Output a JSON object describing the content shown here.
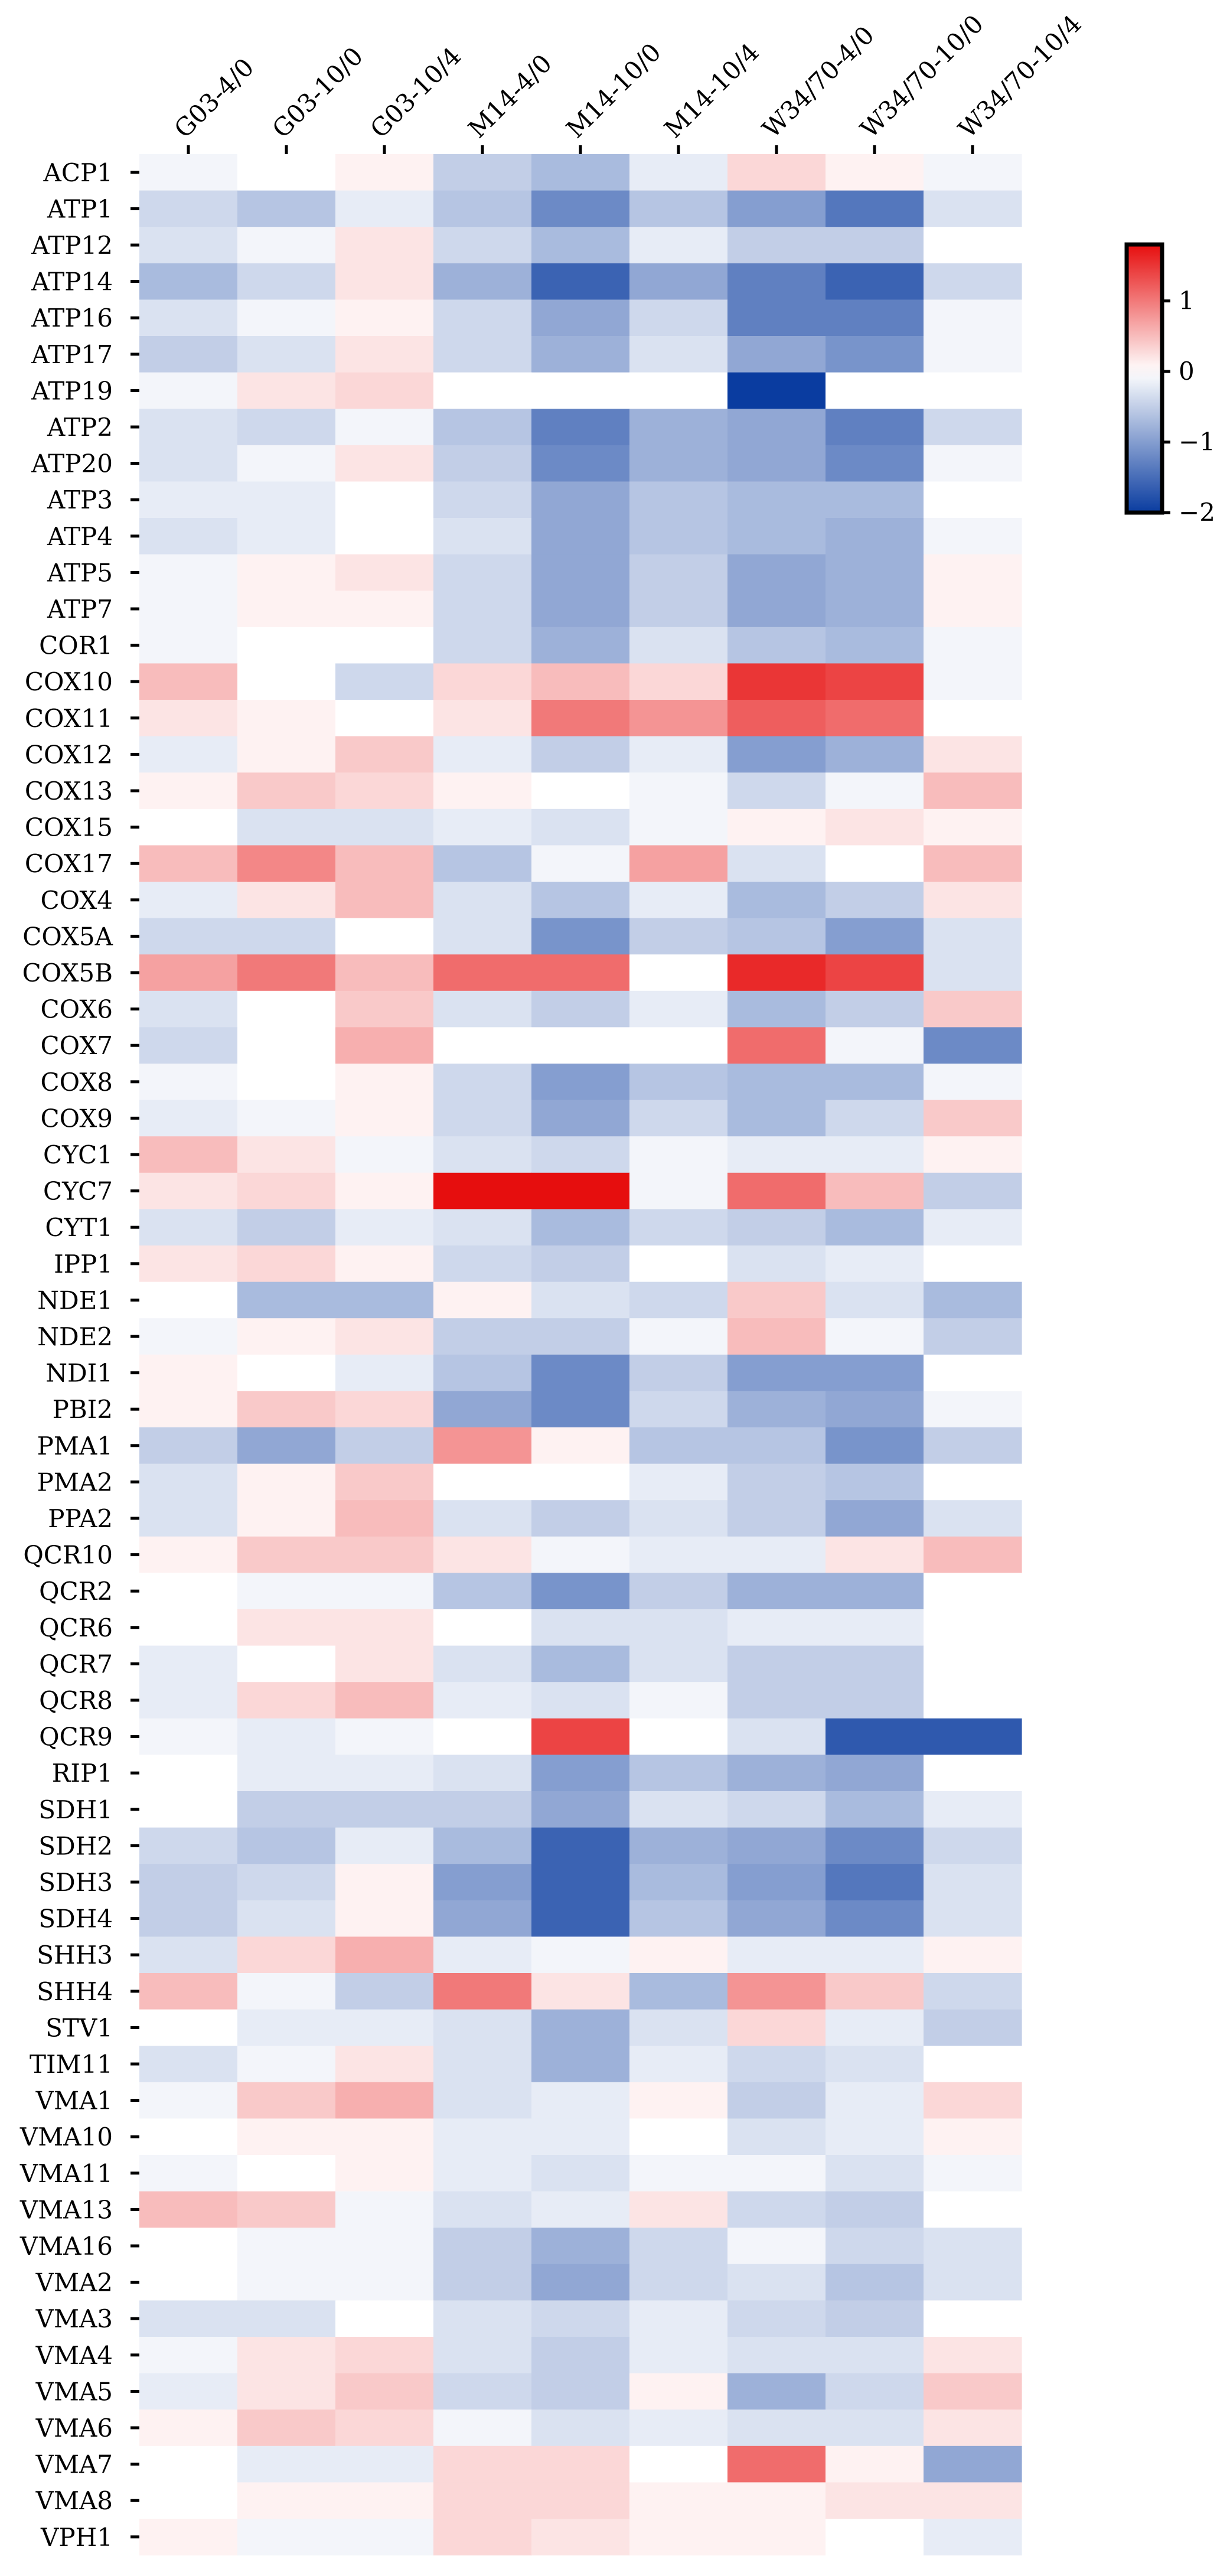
{
  "chart_data": {
    "type": "heatmap",
    "title": "",
    "xlabel": "",
    "ylabel": "",
    "columns": [
      "G03-4/0",
      "G03-10/0",
      "G03-10/4",
      "M14-4/0",
      "M14-10/0",
      "M14-10/4",
      "W34/70-4/0",
      "W34/70-10/0",
      "W34/70-10/4"
    ],
    "rows": [
      "ACP1",
      "ATP1",
      "ATP12",
      "ATP14",
      "ATP16",
      "ATP17",
      "ATP19",
      "ATP2",
      "ATP20",
      "ATP3",
      "ATP4",
      "ATP5",
      "ATP7",
      "COR1",
      "COX10",
      "COX11",
      "COX12",
      "COX13",
      "COX15",
      "COX17",
      "COX4",
      "COX5A",
      "COX5B",
      "COX6",
      "COX7",
      "COX8",
      "COX9",
      "CYC1",
      "CYC7",
      "CYT1",
      "IPP1",
      "NDE1",
      "NDE2",
      "NDI1",
      "PBI2",
      "PMA1",
      "PMA2",
      "PPA2",
      "QCR10",
      "QCR2",
      "QCR6",
      "QCR7",
      "QCR8",
      "QCR9",
      "RIP1",
      "SDH1",
      "SDH2",
      "SDH3",
      "SDH4",
      "SHH3",
      "SHH4",
      "STV1",
      "TIM11",
      "VMA1",
      "VMA10",
      "VMA11",
      "VMA13",
      "VMA16",
      "VMA2",
      "VMA3",
      "VMA4",
      "VMA5",
      "VMA6",
      "VMA7",
      "VMA8",
      "VPH1"
    ],
    "values": [
      [
        -0.1,
        0,
        0.1,
        -0.5,
        -0.7,
        -0.2,
        0.3,
        0.1,
        -0.1
      ],
      [
        -0.4,
        -0.6,
        -0.2,
        -0.6,
        -1.2,
        -0.6,
        -1.0,
        -1.4,
        -0.3
      ],
      [
        -0.3,
        -0.1,
        0.2,
        -0.4,
        -0.7,
        -0.2,
        -0.5,
        -0.5,
        0
      ],
      [
        -0.7,
        -0.4,
        0.2,
        -0.8,
        -1.6,
        -0.9,
        -1.3,
        -1.6,
        -0.4
      ],
      [
        -0.3,
        -0.1,
        0.1,
        -0.4,
        -0.9,
        -0.4,
        -1.3,
        -1.3,
        -0.1
      ],
      [
        -0.5,
        -0.3,
        0.2,
        -0.4,
        -0.8,
        -0.3,
        -0.9,
        -1.1,
        -0.1
      ],
      [
        -0.1,
        0.2,
        0.3,
        0,
        0,
        0,
        -2.0,
        0,
        0
      ],
      [
        -0.3,
        -0.4,
        -0.1,
        -0.6,
        -1.3,
        -0.8,
        -0.9,
        -1.3,
        -0.4
      ],
      [
        -0.3,
        -0.1,
        0.2,
        -0.5,
        -1.2,
        -0.8,
        -0.9,
        -1.2,
        -0.1
      ],
      [
        -0.2,
        -0.2,
        0,
        -0.4,
        -0.9,
        -0.6,
        -0.7,
        -0.7,
        0
      ],
      [
        -0.3,
        -0.2,
        0,
        -0.3,
        -0.9,
        -0.6,
        -0.7,
        -0.8,
        -0.1
      ],
      [
        -0.1,
        0.1,
        0.2,
        -0.4,
        -0.9,
        -0.5,
        -0.9,
        -0.8,
        0.1
      ],
      [
        -0.1,
        0.1,
        0.1,
        -0.4,
        -0.9,
        -0.5,
        -0.9,
        -0.8,
        0.1
      ],
      [
        -0.1,
        0,
        0,
        -0.4,
        -0.8,
        -0.3,
        -0.6,
        -0.7,
        -0.1
      ],
      [
        0.5,
        0,
        -0.4,
        0.3,
        0.5,
        0.3,
        1.5,
        1.4,
        -0.1
      ],
      [
        0.2,
        0.1,
        0,
        0.2,
        1.0,
        0.8,
        1.2,
        1.1,
        0
      ],
      [
        -0.2,
        0.1,
        0.4,
        -0.2,
        -0.5,
        -0.2,
        -1.0,
        -0.8,
        0.2
      ],
      [
        0.1,
        0.4,
        0.3,
        0.1,
        0,
        -0.1,
        -0.4,
        -0.1,
        0.5
      ],
      [
        0,
        -0.3,
        -0.3,
        -0.2,
        -0.3,
        -0.1,
        0.1,
        0.2,
        0.1
      ],
      [
        0.5,
        0.9,
        0.5,
        -0.6,
        -0.1,
        0.7,
        -0.3,
        0,
        0.5
      ],
      [
        -0.2,
        0.2,
        0.5,
        -0.3,
        -0.6,
        -0.2,
        -0.7,
        -0.5,
        0.2
      ],
      [
        -0.4,
        -0.4,
        0,
        -0.3,
        -1.1,
        -0.5,
        -0.6,
        -1.0,
        -0.3
      ],
      [
        0.7,
        1.0,
        0.5,
        1.1,
        1.1,
        0,
        1.6,
        1.4,
        -0.3
      ],
      [
        -0.3,
        0,
        0.4,
        -0.3,
        -0.5,
        -0.2,
        -0.7,
        -0.5,
        0.4
      ],
      [
        -0.4,
        0,
        0.6,
        0,
        0,
        0,
        1.1,
        -0.1,
        -1.2
      ],
      [
        -0.1,
        0,
        0.1,
        -0.4,
        -1.0,
        -0.6,
        -0.7,
        -0.7,
        -0.1
      ],
      [
        -0.2,
        -0.1,
        0.1,
        -0.4,
        -0.9,
        -0.4,
        -0.7,
        -0.4,
        0.4
      ],
      [
        0.5,
        0.2,
        -0.1,
        -0.3,
        -0.4,
        -0.1,
        -0.2,
        -0.2,
        0.1
      ],
      [
        0.2,
        0.3,
        0.1,
        1.8,
        1.8,
        -0.1,
        1.1,
        0.5,
        -0.5
      ],
      [
        -0.3,
        -0.5,
        -0.2,
        -0.3,
        -0.7,
        -0.4,
        -0.5,
        -0.7,
        -0.2
      ],
      [
        0.2,
        0.3,
        0.1,
        -0.4,
        -0.5,
        0,
        -0.3,
        -0.2,
        0
      ],
      [
        0,
        -0.7,
        -0.7,
        0.1,
        -0.3,
        -0.4,
        0.4,
        -0.3,
        -0.7
      ],
      [
        -0.1,
        0.1,
        0.2,
        -0.5,
        -0.5,
        -0.1,
        0.5,
        -0.1,
        -0.5
      ],
      [
        0.1,
        0,
        -0.2,
        -0.6,
        -1.2,
        -0.5,
        -1.0,
        -1.0,
        0
      ],
      [
        0.1,
        0.4,
        0.3,
        -0.9,
        -1.2,
        -0.4,
        -0.8,
        -0.9,
        -0.1
      ],
      [
        -0.5,
        -0.9,
        -0.5,
        0.8,
        0.1,
        -0.6,
        -0.6,
        -1.1,
        -0.5
      ],
      [
        -0.3,
        0.1,
        0.4,
        0,
        0,
        -0.2,
        -0.5,
        -0.6,
        0
      ],
      [
        -0.3,
        0.1,
        0.5,
        -0.3,
        -0.5,
        -0.3,
        -0.5,
        -0.9,
        -0.3
      ],
      [
        0.1,
        0.4,
        0.4,
        0.2,
        -0.1,
        -0.2,
        -0.2,
        0.2,
        0.5
      ],
      [
        0,
        -0.1,
        -0.1,
        -0.6,
        -1.1,
        -0.5,
        -0.8,
        -0.8,
        0
      ],
      [
        0,
        0.2,
        0.2,
        0,
        -0.3,
        -0.3,
        -0.2,
        -0.2,
        0
      ],
      [
        -0.2,
        0,
        0.2,
        -0.3,
        -0.7,
        -0.3,
        -0.5,
        -0.5,
        0
      ],
      [
        -0.2,
        0.3,
        0.5,
        -0.2,
        -0.3,
        -0.1,
        -0.5,
        -0.5,
        0
      ],
      [
        -0.1,
        -0.2,
        -0.1,
        0,
        1.4,
        0,
        -0.3,
        -1.7,
        -1.7
      ],
      [
        0,
        -0.2,
        -0.2,
        -0.3,
        -1.0,
        -0.6,
        -0.8,
        -0.9,
        0
      ],
      [
        0,
        -0.5,
        -0.5,
        -0.5,
        -0.9,
        -0.3,
        -0.4,
        -0.7,
        -0.2
      ],
      [
        -0.4,
        -0.6,
        -0.2,
        -0.7,
        -1.6,
        -0.8,
        -0.9,
        -1.2,
        -0.4
      ],
      [
        -0.5,
        -0.4,
        0.1,
        -1.0,
        -1.6,
        -0.7,
        -1.0,
        -1.4,
        -0.3
      ],
      [
        -0.5,
        -0.3,
        0.1,
        -0.9,
        -1.6,
        -0.6,
        -0.9,
        -1.2,
        -0.3
      ],
      [
        -0.3,
        0.3,
        0.6,
        -0.2,
        -0.1,
        0.1,
        -0.2,
        -0.2,
        0.1
      ],
      [
        0.5,
        -0.1,
        -0.5,
        1.0,
        0.2,
        -0.7,
        0.8,
        0.4,
        -0.4
      ],
      [
        0,
        -0.2,
        -0.2,
        -0.3,
        -0.8,
        -0.3,
        0.3,
        -0.2,
        -0.5
      ],
      [
        -0.3,
        -0.1,
        0.2,
        -0.3,
        -0.8,
        -0.2,
        -0.4,
        -0.3,
        0
      ],
      [
        -0.1,
        0.4,
        0.6,
        -0.3,
        -0.2,
        0.1,
        -0.5,
        -0.2,
        0.3
      ],
      [
        0,
        0.1,
        0.1,
        -0.2,
        -0.2,
        0,
        -0.3,
        -0.2,
        0.1
      ],
      [
        -0.1,
        0,
        0.1,
        -0.2,
        -0.3,
        -0.1,
        -0.1,
        -0.3,
        -0.1
      ],
      [
        0.5,
        0.4,
        -0.1,
        -0.3,
        -0.2,
        0.2,
        -0.4,
        -0.5,
        0
      ],
      [
        0,
        -0.1,
        -0.1,
        -0.5,
        -0.8,
        -0.4,
        -0.1,
        -0.4,
        -0.3
      ],
      [
        0,
        -0.1,
        -0.1,
        -0.5,
        -0.9,
        -0.4,
        -0.3,
        -0.6,
        -0.3
      ],
      [
        -0.3,
        -0.3,
        0,
        -0.3,
        -0.4,
        -0.2,
        -0.4,
        -0.5,
        0
      ],
      [
        -0.1,
        0.2,
        0.3,
        -0.3,
        -0.5,
        -0.2,
        -0.3,
        -0.3,
        0.2
      ],
      [
        -0.2,
        0.2,
        0.4,
        -0.4,
        -0.5,
        0.1,
        -0.8,
        -0.4,
        0.4
      ],
      [
        0.1,
        0.4,
        0.3,
        -0.1,
        -0.3,
        -0.2,
        -0.3,
        -0.3,
        0.2
      ],
      [
        0,
        -0.2,
        -0.2,
        0.3,
        0.3,
        0,
        1.1,
        0.1,
        -0.9
      ],
      [
        0,
        0.1,
        0.1,
        0.3,
        0.3,
        0.1,
        0.1,
        0.2,
        0.2
      ],
      [
        0.1,
        -0.1,
        -0.1,
        0.3,
        0.2,
        0.1,
        0.1,
        0,
        -0.2
      ]
    ],
    "colorbar": {
      "ticks": [
        1,
        0,
        -1,
        -2
      ],
      "tick_labels": [
        "1",
        "0",
        "−1",
        "−2"
      ],
      "range": [
        -2,
        1.8
      ]
    },
    "colormap": {
      "negative": "#0a3ca0",
      "zero": "#ffffff",
      "positive": "#e60e0e"
    },
    "grid": false,
    "legend": "colorbar at right"
  }
}
